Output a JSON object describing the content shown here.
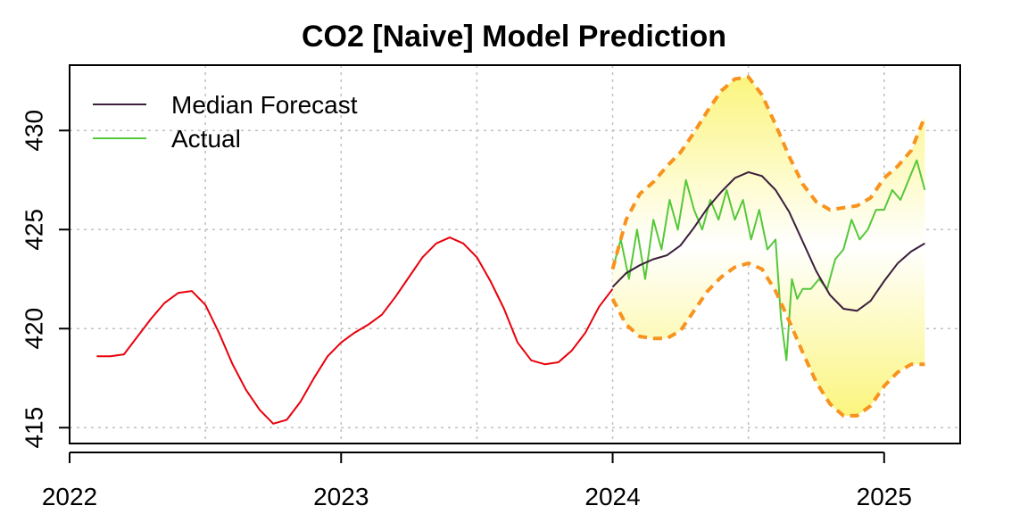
{
  "chart_data": {
    "type": "line",
    "title": "CO2 [Naive] Model Prediction",
    "xlabel": "",
    "ylabel": "",
    "xlim": [
      2022.0,
      2025.28
    ],
    "ylim": [
      414.2,
      433.3
    ],
    "x_ticks": [
      2022,
      2023,
      2024,
      2025
    ],
    "x_tick_labels": [
      "2022",
      "2023",
      "2024",
      "2025"
    ],
    "y_ticks": [
      415,
      420,
      425,
      430
    ],
    "y_tick_labels": [
      "415",
      "420",
      "425",
      "430"
    ],
    "grid": true,
    "legend_position": "top-left",
    "colors": {
      "history": "#e8000b",
      "median": "#3b1f3d",
      "actual": "#55c83a",
      "bounds": "#f7931e",
      "band_edge": "#fbf57e",
      "band_center": "#ffffff",
      "grid": "#c0c0c0"
    },
    "legend": [
      {
        "label": "Median Forecast",
        "series": "median"
      },
      {
        "label": "Actual",
        "series": "actual"
      }
    ],
    "history": {
      "x": [
        2022.1,
        2022.15,
        2022.2,
        2022.25,
        2022.3,
        2022.35,
        2022.4,
        2022.45,
        2022.5,
        2022.55,
        2022.6,
        2022.65,
        2022.7,
        2022.75,
        2022.8,
        2022.85,
        2022.9,
        2022.95,
        2023.0,
        2023.05,
        2023.1,
        2023.15,
        2023.2,
        2023.25,
        2023.3,
        2023.35,
        2023.4,
        2023.45,
        2023.5,
        2023.55,
        2023.6,
        2023.65,
        2023.7,
        2023.75,
        2023.8,
        2023.85,
        2023.9,
        2023.95,
        2024.0
      ],
      "y": [
        418.6,
        418.6,
        418.7,
        419.6,
        420.5,
        421.3,
        421.8,
        421.9,
        421.2,
        419.8,
        418.2,
        416.9,
        415.9,
        415.2,
        415.4,
        416.3,
        417.5,
        418.6,
        419.3,
        419.8,
        420.2,
        420.7,
        421.6,
        422.6,
        423.6,
        424.3,
        424.6,
        424.3,
        423.6,
        422.4,
        421.0,
        419.3,
        418.4,
        418.2,
        418.3,
        418.9,
        419.8,
        421.1,
        422.0
      ]
    },
    "median_forecast": {
      "x": [
        2024.0,
        2024.05,
        2024.1,
        2024.15,
        2024.2,
        2024.25,
        2024.3,
        2024.35,
        2024.4,
        2024.45,
        2024.5,
        2024.55,
        2024.6,
        2024.65,
        2024.7,
        2024.75,
        2024.8,
        2024.85,
        2024.9,
        2024.95,
        2025.0,
        2025.05,
        2025.1,
        2025.15
      ],
      "y": [
        422.1,
        422.8,
        423.2,
        423.5,
        423.7,
        424.2,
        425.1,
        426.1,
        426.9,
        427.6,
        427.9,
        427.7,
        427.0,
        425.9,
        424.4,
        422.9,
        421.7,
        421.0,
        420.9,
        421.4,
        422.4,
        423.3,
        423.9,
        424.3
      ]
    },
    "actual": {
      "x": [
        2024.0,
        2024.03,
        2024.06,
        2024.09,
        2024.12,
        2024.15,
        2024.18,
        2024.21,
        2024.24,
        2024.27,
        2024.3,
        2024.33,
        2024.36,
        2024.39,
        2024.42,
        2024.45,
        2024.48,
        2024.51,
        2024.54,
        2024.57,
        2024.6,
        2024.62,
        2024.64,
        2024.66,
        2024.68,
        2024.7,
        2024.73,
        2024.76,
        2024.79,
        2024.82,
        2024.85,
        2024.88,
        2024.91,
        2024.94,
        2024.97,
        2025.0,
        2025.03,
        2025.06,
        2025.09,
        2025.12,
        2025.15
      ],
      "y": [
        423.0,
        424.5,
        422.5,
        425.0,
        422.5,
        425.5,
        424.0,
        426.5,
        425.0,
        427.5,
        426.0,
        425.0,
        426.5,
        425.5,
        427.0,
        425.5,
        426.5,
        424.5,
        426.0,
        424.0,
        424.5,
        420.5,
        418.4,
        422.5,
        421.5,
        422.0,
        422.0,
        422.5,
        422.0,
        423.5,
        424.0,
        425.5,
        424.5,
        425.0,
        426.0,
        426.0,
        427.0,
        426.5,
        427.5,
        428.5,
        427.0
      ]
    },
    "upper_bound": {
      "x": [
        2024.0,
        2024.05,
        2024.1,
        2024.15,
        2024.2,
        2024.25,
        2024.3,
        2024.35,
        2024.4,
        2024.45,
        2024.5,
        2024.55,
        2024.6,
        2024.65,
        2024.7,
        2024.75,
        2024.8,
        2024.85,
        2024.9,
        2024.95,
        2025.0,
        2025.05,
        2025.1,
        2025.15
      ],
      "y": [
        423.0,
        425.5,
        426.8,
        427.4,
        428.2,
        428.9,
        429.9,
        431.0,
        432.0,
        432.6,
        432.7,
        431.8,
        430.3,
        428.7,
        427.3,
        426.4,
        426.0,
        426.1,
        426.2,
        426.6,
        427.6,
        428.2,
        429.0,
        430.7
      ]
    },
    "lower_bound": {
      "x": [
        2024.0,
        2024.05,
        2024.1,
        2024.15,
        2024.2,
        2024.25,
        2024.3,
        2024.35,
        2024.4,
        2024.45,
        2024.5,
        2024.55,
        2024.6,
        2024.65,
        2024.7,
        2024.75,
        2024.8,
        2024.85,
        2024.9,
        2024.95,
        2025.0,
        2025.05,
        2025.1,
        2025.15
      ],
      "y": [
        421.5,
        420.2,
        419.6,
        419.5,
        419.5,
        419.9,
        420.9,
        421.9,
        422.6,
        423.1,
        423.3,
        423.0,
        421.9,
        420.4,
        418.8,
        417.3,
        416.2,
        415.6,
        415.6,
        416.1,
        417.1,
        417.8,
        418.2,
        418.2
      ]
    }
  }
}
